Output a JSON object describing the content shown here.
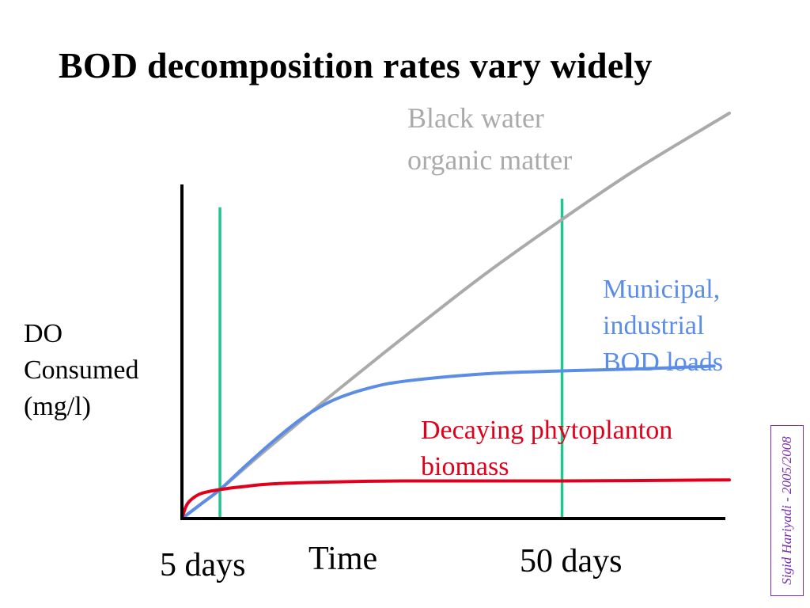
{
  "title": "BOD decomposition rates vary widely",
  "signature": "Sigid Hariyadi - 2005/2008",
  "chart_data": {
    "type": "line",
    "title": "BOD decomposition rates vary widely",
    "xlabel": "Time",
    "ylabel": "DO Consumed (mg/l)",
    "ylabel_lines": [
      "DO",
      "Consumed",
      "(mg/l)"
    ],
    "x_ticks": [
      {
        "label": "5 days",
        "x": 5
      },
      {
        "label": "50 days",
        "x": 50
      }
    ],
    "xlim": [
      0,
      72
    ],
    "ylim": [
      0,
      42
    ],
    "grid": false,
    "legend": "inline labels",
    "series": [
      {
        "name": "Black water organic matter",
        "label_lines": [
          "Black water",
          "organic matter"
        ],
        "color": "#aaaaaa",
        "x": [
          0,
          2.5,
          5,
          10,
          15,
          20,
          30,
          40,
          50,
          60,
          72
        ],
        "y": [
          0,
          1.5,
          3.0,
          6.4,
          9.7,
          13.0,
          19.3,
          25.4,
          31.0,
          36.3,
          42.0
        ]
      },
      {
        "name": "Municipal, industrial BOD loads",
        "label_lines": [
          "Municipal,",
          "industrial",
          "BOD loads"
        ],
        "color": "#5b8de6",
        "x": [
          0,
          2.5,
          5,
          8,
          12,
          16,
          20,
          25,
          30,
          40,
          50,
          60,
          70
        ],
        "y": [
          0,
          1.5,
          3.0,
          5.2,
          8.0,
          10.5,
          12.3,
          13.6,
          14.3,
          15.0,
          15.3,
          15.5,
          15.8
        ]
      },
      {
        "name": "Decaying phytoplanton biomass",
        "label_lines": [
          "Decaying phytoplanton",
          "biomass"
        ],
        "color": "#e0001b",
        "x": [
          0,
          0.5,
          1,
          2,
          3,
          5,
          8,
          12,
          20,
          30,
          50,
          72
        ],
        "y": [
          0,
          1.2,
          1.8,
          2.4,
          2.7,
          3.0,
          3.3,
          3.6,
          3.8,
          3.9,
          3.9,
          4.0
        ]
      }
    ],
    "markers": [
      {
        "x": 5,
        "color": "#22c48f"
      },
      {
        "x": 50,
        "color": "#22c48f"
      }
    ]
  }
}
